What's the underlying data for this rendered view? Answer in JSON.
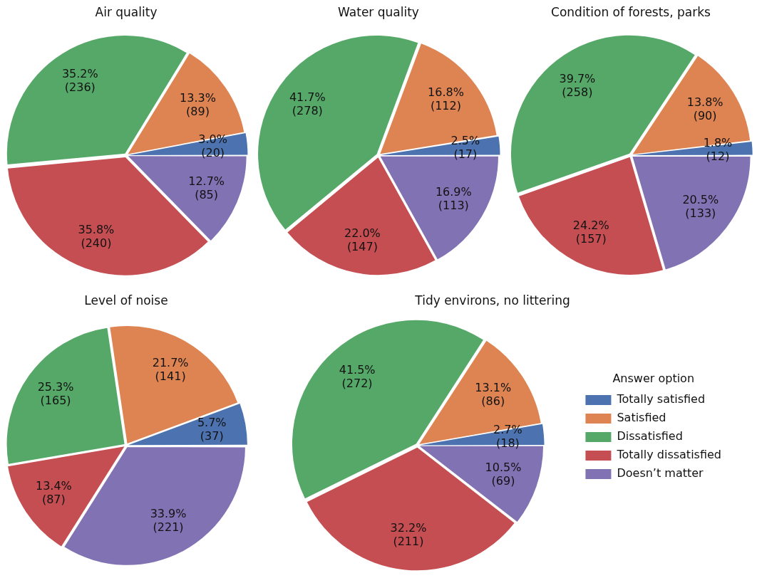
{
  "chart_data": [
    {
      "type": "pie",
      "title": "Air quality",
      "categories": [
        null,
        null,
        null,
        null,
        null
      ],
      "values": [
        20,
        89,
        236,
        240,
        85
      ],
      "colors": [
        "#4c72b0",
        "#dd8452",
        "#55a868",
        "#c44e52",
        "#8172b3"
      ],
      "value_labels": [
        "3.0%\n(20)",
        "13.3%\n(89)",
        "35.2%\n(236)",
        "35.8%\n(240)",
        "12.7%\n(85)"
      ]
    },
    {
      "type": "pie",
      "title": "Water quality",
      "categories": [
        null,
        null,
        null,
        null,
        null
      ],
      "values": [
        17,
        112,
        278,
        147,
        113
      ],
      "colors": [
        "#4c72b0",
        "#dd8452",
        "#55a868",
        "#c44e52",
        "#8172b3"
      ],
      "value_labels": [
        "2.5%\n(17)",
        "16.8%\n(112)",
        "41.7%\n(278)",
        "22.0%\n(147)",
        "16.9%\n(113)"
      ]
    },
    {
      "type": "pie",
      "title": "Condition of forests, parks",
      "categories": [
        null,
        null,
        null,
        null,
        null
      ],
      "values": [
        12,
        90,
        258,
        157,
        133
      ],
      "colors": [
        "#4c72b0",
        "#dd8452",
        "#55a868",
        "#c44e52",
        "#8172b3"
      ],
      "value_labels": [
        "1.8%\n(12)",
        "13.8%\n(90)",
        "39.7%\n(258)",
        "24.2%\n(157)",
        "20.5%\n(133)"
      ]
    },
    {
      "type": "pie",
      "title": "Level of noise",
      "categories": [
        null,
        null,
        null,
        null,
        null
      ],
      "values": [
        37,
        141,
        165,
        87,
        221
      ],
      "colors": [
        "#4c72b0",
        "#dd8452",
        "#55a868",
        "#c44e52",
        "#8172b3"
      ],
      "value_labels": [
        "5.7%\n(37)",
        "21.7%\n(141)",
        "25.3%\n(165)",
        "13.4%\n(87)",
        "33.9%\n(221)"
      ]
    },
    {
      "type": "pie",
      "title": "Tidy environs, no littering",
      "categories": [
        "Totally satisfied",
        "Satisfied",
        "Dissatisfied",
        "Totally dissatisfied",
        "Doesn’t matter"
      ],
      "values": [
        18,
        86,
        272,
        211,
        69
      ],
      "colors": [
        "#4c72b0",
        "#dd8452",
        "#55a868",
        "#c44e52",
        "#8172b3"
      ],
      "value_labels": [
        "2.7%\n(18)",
        "13.1%\n(86)",
        "41.5%\n(272)",
        "32.2%\n(211)",
        "10.5%\n(69)"
      ],
      "legend": "right",
      "legend_title": "Answer option"
    }
  ]
}
